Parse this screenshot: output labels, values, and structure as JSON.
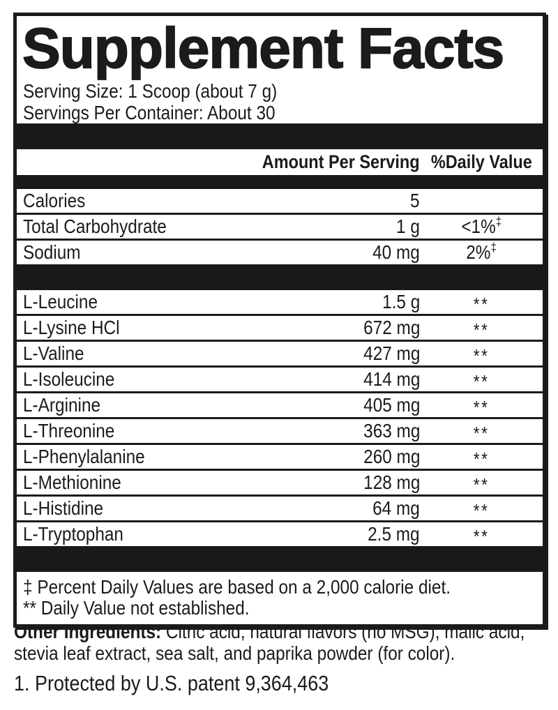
{
  "label": {
    "title": "Supplement Facts",
    "serving_size": "Serving Size: 1 Scoop (about 7 g)",
    "servings_per_container": "Servings Per Container: About 30",
    "columns": {
      "amount": "Amount Per Serving",
      "dv": "%Daily Value"
    },
    "nutrients": [
      {
        "name": "Calories",
        "amount": "5",
        "dv": "",
        "dv_sup": ""
      },
      {
        "name": "Total Carbohydrate",
        "amount": "1 g",
        "dv": "<1%",
        "dv_sup": "‡"
      },
      {
        "name": "Sodium",
        "amount": "40 mg",
        "dv": "2%",
        "dv_sup": "‡"
      }
    ],
    "amino_acids": [
      {
        "name": "L-Leucine",
        "amount": "1.5 g",
        "dv": "**",
        "dv_sup": ""
      },
      {
        "name": "L-Lysine HCl",
        "amount": "672 mg",
        "dv": "**",
        "dv_sup": ""
      },
      {
        "name": "L-Valine",
        "amount": "427 mg",
        "dv": "**",
        "dv_sup": ""
      },
      {
        "name": "L-Isoleucine",
        "amount": "414 mg",
        "dv": "**",
        "dv_sup": ""
      },
      {
        "name": "L-Arginine",
        "amount": "405 mg",
        "dv": "**",
        "dv_sup": ""
      },
      {
        "name": "L-Threonine",
        "amount": "363 mg",
        "dv": "**",
        "dv_sup": ""
      },
      {
        "name": "L-Phenylalanine",
        "amount": "260 mg",
        "dv": "**",
        "dv_sup": ""
      },
      {
        "name": "L-Methionine",
        "amount": "128 mg",
        "dv": "**",
        "dv_sup": ""
      },
      {
        "name": "L-Histidine",
        "amount": "64 mg",
        "dv": "**",
        "dv_sup": ""
      },
      {
        "name": "L-Tryptophan",
        "amount": "2.5 mg",
        "dv": "**",
        "dv_sup": ""
      }
    ],
    "footnotes": [
      "‡ Percent Daily Values are based on a 2,000 calorie diet.",
      "** Daily Value not established."
    ]
  },
  "below": {
    "other_ingredients_label": "Other Ingredients:",
    "other_ingredients_line1": "Citric acid, natural flavors (no MSG), malic acid,",
    "other_ingredients_line2": "stevia leaf extract, sea salt, and paprika powder (for color).",
    "patent": "1. Protected by U.S. patent 9,364,463"
  },
  "colors": {
    "ink": "#1b1b1b",
    "background": "#ffffff"
  }
}
